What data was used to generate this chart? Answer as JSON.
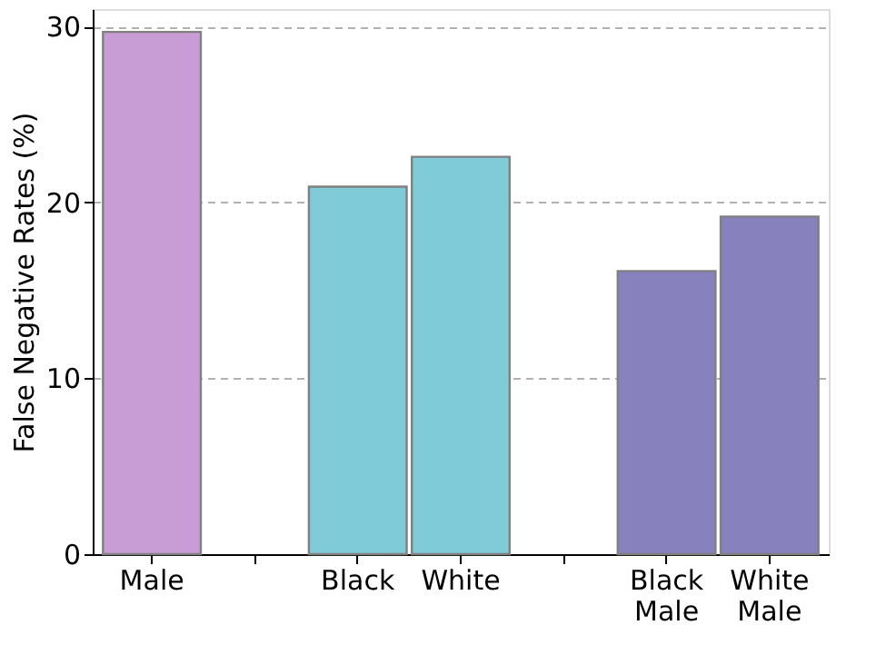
{
  "chart_data": {
    "type": "bar",
    "ylabel": "False Negative Rates (%)",
    "categories": [
      "Male",
      null,
      "Black",
      "White",
      null,
      "Black Male",
      "White Male"
    ],
    "values": [
      29.7,
      null,
      20.9,
      22.6,
      null,
      16.1,
      19.2
    ],
    "colors": [
      "#c89cd5",
      null,
      "#7fcbd8",
      "#7fcbd8",
      null,
      "#8781bd",
      "#8781bd"
    ],
    "ylim": [
      0,
      31
    ],
    "yticks": [
      0,
      10,
      20,
      30
    ],
    "grid": "y"
  }
}
